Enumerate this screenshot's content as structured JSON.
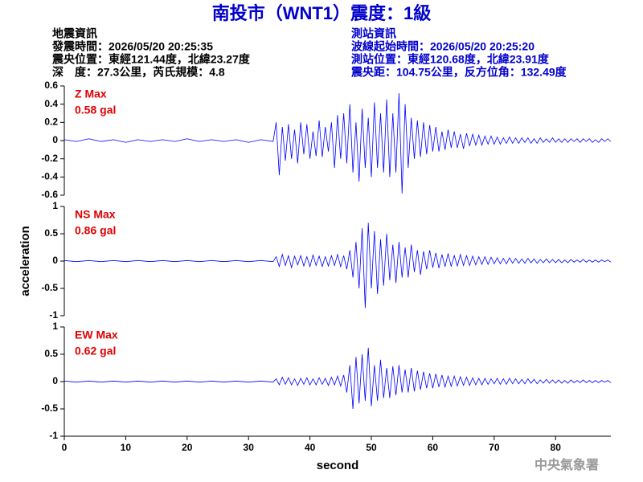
{
  "header": {
    "title": "南投市（WNT1）震度：1級",
    "quake_info": [
      "地震資訊",
      "發震時間：2026/05/20 20:25:35",
      "震央位置：東經121.44度，北緯23.27度",
      "深　度：27.3公里，芮氏規模：4.8"
    ],
    "station_info": [
      "測站資訊",
      "波線起始時間：2026/05/20 20:25:20",
      "測站位置：東經120.68度，北緯23.91度",
      "震央距：104.75公里，反方位角：132.49度"
    ]
  },
  "credit": "中央氣象署",
  "chart_data": [
    {
      "type": "line",
      "annotation": [
        "Z Max",
        "0.58 gal"
      ],
      "color": "#0000ff",
      "xlim": [
        0,
        89
      ],
      "ylim": [
        -0.6,
        0.6
      ],
      "yticks": [
        -0.6,
        -0.4,
        -0.2,
        0,
        0.2,
        0.4,
        0.6
      ],
      "x": [
        0,
        2,
        4,
        6,
        8,
        10,
        12,
        14,
        16,
        18,
        20,
        22,
        24,
        26,
        28,
        30,
        32,
        34,
        34.5,
        35,
        35.5,
        36,
        36.5,
        37,
        37.5,
        38,
        38.5,
        39,
        39.5,
        40,
        40.5,
        41,
        41.5,
        42,
        42.5,
        43,
        43.5,
        44,
        44.5,
        45,
        45.5,
        46,
        46.5,
        47,
        47.5,
        48,
        48.5,
        49,
        49.5,
        50,
        50.5,
        51,
        51.5,
        52,
        52.5,
        53,
        53.5,
        54,
        54.5,
        55,
        55.5,
        56,
        56.5,
        57,
        57.5,
        58,
        58.5,
        59,
        59.5,
        60,
        60.5,
        61,
        61.5,
        62,
        62.5,
        63,
        63.5,
        64,
        64.5,
        65,
        65.5,
        66,
        66.5,
        67,
        67.5,
        68,
        68.5,
        69,
        69.5,
        70,
        70.5,
        71,
        71.5,
        72,
        72.5,
        73,
        73.5,
        74,
        74.5,
        75,
        75.5,
        76,
        76.5,
        77,
        77.5,
        78,
        78.5,
        79,
        79.5,
        80,
        80.5,
        81,
        81.5,
        82,
        82.5,
        83,
        83.5,
        84,
        84.5,
        85,
        85.5,
        86,
        86.5,
        87,
        87.5,
        88,
        88.5,
        89
      ],
      "values": [
        0.01,
        -0.01,
        0.02,
        -0.01,
        0.01,
        -0.02,
        0.01,
        -0.01,
        0.01,
        -0.01,
        0.02,
        -0.01,
        0.01,
        -0.01,
        0.01,
        -0.02,
        0.01,
        -0.01,
        0.2,
        -0.38,
        0.15,
        -0.22,
        0.18,
        -0.2,
        0.12,
        -0.25,
        0.2,
        -0.15,
        0.18,
        -0.2,
        0.1,
        -0.17,
        0.22,
        -0.18,
        0.15,
        -0.12,
        0.2,
        -0.3,
        0.28,
        -0.2,
        0.3,
        -0.25,
        0.4,
        -0.35,
        0.2,
        -0.45,
        0.35,
        -0.3,
        0.25,
        -0.4,
        0.42,
        -0.3,
        0.3,
        -0.35,
        0.45,
        -0.4,
        0.3,
        -0.35,
        0.52,
        -0.58,
        0.4,
        -0.3,
        0.25,
        -0.2,
        0.22,
        -0.18,
        0.2,
        -0.15,
        0.17,
        -0.12,
        0.15,
        -0.12,
        0.1,
        -0.1,
        0.12,
        -0.08,
        0.1,
        -0.08,
        0.07,
        -0.09,
        0.08,
        -0.06,
        0.07,
        -0.05,
        0.06,
        -0.05,
        0.05,
        -0.04,
        0.05,
        -0.04,
        0.04,
        -0.04,
        0.03,
        -0.03,
        0.04,
        -0.03,
        0.03,
        -0.03,
        0.03,
        -0.02,
        0.03,
        -0.03,
        0.02,
        -0.03,
        0.03,
        -0.02,
        0.02,
        -0.02,
        0.03,
        -0.02,
        0.02,
        -0.02,
        0.02,
        -0.02,
        0.02,
        -0.01,
        0.02,
        -0.02,
        0.02,
        -0.01,
        0.02,
        -0.02,
        0.01,
        -0.02,
        0.02,
        -0.01,
        0.02,
        -0.01
      ]
    },
    {
      "type": "line",
      "annotation": [
        "NS Max",
        "0.86 gal"
      ],
      "color": "#0000ff",
      "ylabel": "acceleration",
      "xlim": [
        0,
        89
      ],
      "ylim": [
        -1,
        1
      ],
      "yticks": [
        -1,
        -0.5,
        0,
        0.5,
        1
      ],
      "x": [
        0,
        2,
        4,
        6,
        8,
        10,
        12,
        14,
        16,
        18,
        20,
        22,
        24,
        26,
        28,
        30,
        32,
        34,
        34.5,
        35,
        35.5,
        36,
        36.5,
        37,
        37.5,
        38,
        38.5,
        39,
        39.5,
        40,
        40.5,
        41,
        41.5,
        42,
        42.5,
        43,
        43.5,
        44,
        44.5,
        45,
        45.5,
        46,
        46.5,
        47,
        47.5,
        48,
        48.5,
        49,
        49.5,
        50,
        50.5,
        51,
        51.5,
        52,
        52.5,
        53,
        53.5,
        54,
        54.5,
        55,
        55.5,
        56,
        56.5,
        57,
        57.5,
        58,
        58.5,
        59,
        59.5,
        60,
        60.5,
        61,
        61.5,
        62,
        62.5,
        63,
        63.5,
        64,
        64.5,
        65,
        65.5,
        66,
        66.5,
        67,
        67.5,
        68,
        68.5,
        69,
        69.5,
        70,
        70.5,
        71,
        71.5,
        72,
        72.5,
        73,
        73.5,
        74,
        74.5,
        75,
        75.5,
        76,
        76.5,
        77,
        77.5,
        78,
        78.5,
        79,
        79.5,
        80,
        80.5,
        81,
        81.5,
        82,
        82.5,
        83,
        83.5,
        84,
        84.5,
        85,
        85.5,
        86,
        86.5,
        87,
        87.5,
        88,
        88.5,
        89
      ],
      "values": [
        0.01,
        -0.01,
        0.01,
        -0.01,
        0.01,
        -0.01,
        0.01,
        -0.01,
        0.01,
        -0.01,
        0.01,
        -0.01,
        0.01,
        -0.01,
        0.01,
        -0.01,
        0.01,
        -0.01,
        0.08,
        -0.1,
        0.12,
        -0.08,
        0.1,
        -0.12,
        0.09,
        -0.07,
        0.1,
        -0.09,
        0.08,
        -0.1,
        0.11,
        -0.08,
        0.09,
        -0.1,
        0.08,
        -0.09,
        0.1,
        -0.08,
        0.12,
        -0.1,
        0.1,
        -0.15,
        0.2,
        -0.3,
        0.35,
        -0.5,
        0.6,
        -0.86,
        0.7,
        -0.5,
        0.55,
        -0.6,
        0.4,
        -0.45,
        0.5,
        -0.35,
        0.3,
        -0.4,
        0.35,
        -0.3,
        0.25,
        -0.3,
        0.3,
        -0.2,
        0.2,
        -0.25,
        0.18,
        -0.15,
        0.2,
        -0.12,
        0.15,
        -0.13,
        0.12,
        -0.1,
        0.14,
        -0.1,
        0.1,
        -0.09,
        0.12,
        -0.08,
        0.1,
        -0.08,
        0.09,
        -0.07,
        0.08,
        -0.06,
        0.08,
        -0.06,
        0.07,
        -0.05,
        0.06,
        -0.05,
        0.05,
        -0.05,
        0.06,
        -0.04,
        0.05,
        -0.04,
        0.04,
        -0.04,
        0.05,
        -0.03,
        0.04,
        -0.04,
        0.03,
        -0.03,
        0.04,
        -0.03,
        0.03,
        -0.03,
        0.03,
        -0.03,
        0.02,
        -0.03,
        0.03,
        -0.02,
        0.02,
        -0.02,
        0.03,
        -0.02,
        0.02,
        -0.02,
        0.02,
        -0.02,
        0.02,
        -0.01,
        0.02,
        -0.02
      ]
    },
    {
      "type": "line",
      "annotation": [
        "EW Max",
        "0.62 gal"
      ],
      "color": "#0000ff",
      "xlabel": "second",
      "xlim": [
        0,
        89
      ],
      "ylim": [
        -1,
        1
      ],
      "yticks": [
        -1,
        -0.5,
        0,
        0.5,
        1
      ],
      "xticks": [
        0,
        10,
        20,
        30,
        40,
        50,
        60,
        70,
        80
      ],
      "x": [
        0,
        2,
        4,
        6,
        8,
        10,
        12,
        14,
        16,
        18,
        20,
        22,
        24,
        26,
        28,
        30,
        32,
        34,
        34.5,
        35,
        35.5,
        36,
        36.5,
        37,
        37.5,
        38,
        38.5,
        39,
        39.5,
        40,
        40.5,
        41,
        41.5,
        42,
        42.5,
        43,
        43.5,
        44,
        44.5,
        45,
        45.5,
        46,
        46.5,
        47,
        47.5,
        48,
        48.5,
        49,
        49.5,
        50,
        50.5,
        51,
        51.5,
        52,
        52.5,
        53,
        53.5,
        54,
        54.5,
        55,
        55.5,
        56,
        56.5,
        57,
        57.5,
        58,
        58.5,
        59,
        59.5,
        60,
        60.5,
        61,
        61.5,
        62,
        62.5,
        63,
        63.5,
        64,
        64.5,
        65,
        65.5,
        66,
        66.5,
        67,
        67.5,
        68,
        68.5,
        69,
        69.5,
        70,
        70.5,
        71,
        71.5,
        72,
        72.5,
        73,
        73.5,
        74,
        74.5,
        75,
        75.5,
        76,
        76.5,
        77,
        77.5,
        78,
        78.5,
        79,
        79.5,
        80,
        80.5,
        81,
        81.5,
        82,
        82.5,
        83,
        83.5,
        84,
        84.5,
        85,
        85.5,
        86,
        86.5,
        87,
        87.5,
        88,
        88.5,
        89
      ],
      "values": [
        0.01,
        -0.01,
        0.01,
        -0.01,
        0.01,
        -0.01,
        0.01,
        -0.01,
        0.01,
        -0.01,
        0.01,
        -0.01,
        0.01,
        -0.01,
        0.01,
        -0.01,
        0.01,
        -0.01,
        0.05,
        -0.06,
        0.08,
        -0.05,
        0.07,
        -0.06,
        0.05,
        -0.07,
        0.06,
        -0.05,
        0.07,
        -0.06,
        0.05,
        -0.06,
        0.07,
        -0.05,
        0.06,
        -0.07,
        0.08,
        -0.06,
        0.1,
        -0.08,
        0.12,
        -0.2,
        0.3,
        -0.5,
        0.45,
        -0.4,
        0.5,
        -0.35,
        0.62,
        -0.45,
        0.3,
        -0.35,
        0.4,
        -0.3,
        0.25,
        -0.3,
        0.28,
        -0.25,
        0.3,
        -0.2,
        0.22,
        -0.2,
        0.25,
        -0.18,
        0.2,
        -0.15,
        0.18,
        -0.12,
        0.15,
        -0.12,
        0.14,
        -0.1,
        0.12,
        -0.1,
        0.1,
        -0.09,
        0.1,
        -0.08,
        0.09,
        -0.07,
        0.08,
        -0.07,
        0.07,
        -0.06,
        0.06,
        -0.06,
        0.06,
        -0.05,
        0.05,
        -0.04,
        0.06,
        -0.05,
        0.05,
        -0.05,
        0.06,
        -0.04,
        0.05,
        -0.04,
        0.04,
        -0.04,
        0.05,
        -0.03,
        0.04,
        -0.04,
        0.03,
        -0.03,
        0.04,
        -0.03,
        0.03,
        -0.03,
        0.03,
        -0.03,
        0.02,
        -0.03,
        0.03,
        -0.02,
        0.02,
        -0.02,
        0.03,
        -0.02,
        0.02,
        -0.02,
        0.02,
        -0.02,
        0.02,
        -0.01,
        0.02,
        -0.02
      ]
    }
  ]
}
